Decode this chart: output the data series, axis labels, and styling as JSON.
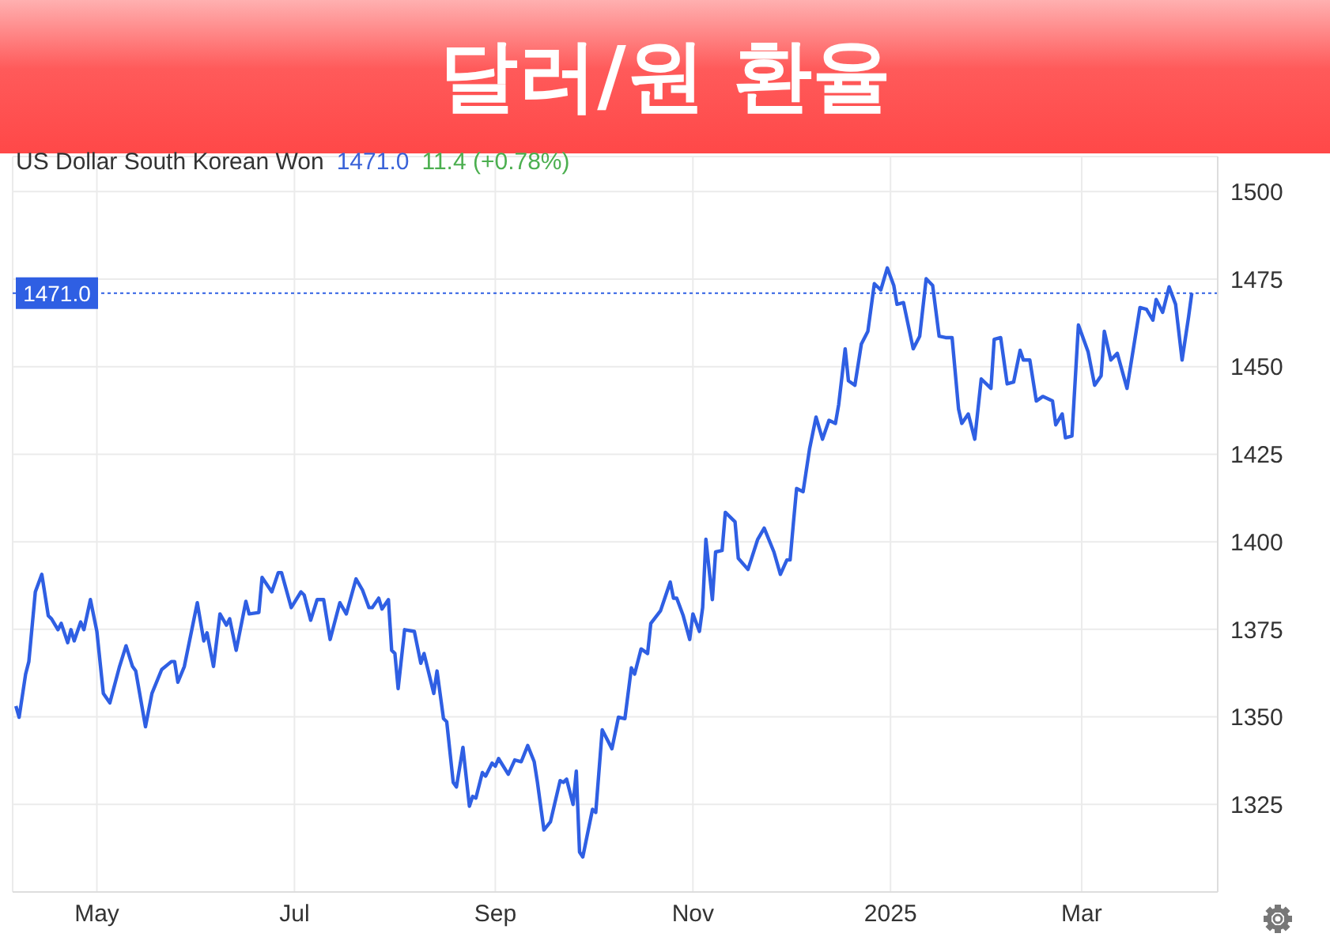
{
  "chart_data": {
    "type": "line",
    "title": "달러/원 환율",
    "subtitle": "US Dollar South Korean Won",
    "annotations": [
      "1471.0",
      "11.4 (+0.78%)"
    ],
    "x": [
      "2024-04-06",
      "2024-04-07",
      "2024-04-09",
      "2024-04-10",
      "2024-04-12",
      "2024-04-14",
      "2024-04-16",
      "2024-04-17",
      "2024-04-19",
      "2024-04-20",
      "2024-04-22",
      "2024-04-23",
      "2024-04-24",
      "2024-04-26",
      "2024-04-27",
      "2024-04-29",
      "2024-05-01",
      "2024-05-03",
      "2024-05-05",
      "2024-05-08",
      "2024-05-10",
      "2024-05-12",
      "2024-05-13",
      "2024-05-16",
      "2024-05-18",
      "2024-05-21",
      "2024-05-24",
      "2024-05-25",
      "2024-05-26",
      "2024-05-28",
      "2024-06-01",
      "2024-06-03",
      "2024-06-04",
      "2024-06-06",
      "2024-06-08",
      "2024-06-10",
      "2024-06-11",
      "2024-06-13",
      "2024-06-16",
      "2024-06-17",
      "2024-06-20",
      "2024-06-21",
      "2024-06-24",
      "2024-06-26",
      "2024-06-27",
      "2024-06-30",
      "2024-07-03",
      "2024-07-04",
      "2024-07-06",
      "2024-07-08",
      "2024-07-10",
      "2024-07-12",
      "2024-07-15",
      "2024-07-17",
      "2024-07-20",
      "2024-07-22",
      "2024-07-24",
      "2024-07-25",
      "2024-07-27",
      "2024-07-28",
      "2024-07-30",
      "2024-07-31",
      "2024-08-01",
      "2024-08-02",
      "2024-08-04",
      "2024-08-07",
      "2024-08-09",
      "2024-08-10",
      "2024-08-13",
      "2024-08-14",
      "2024-08-16",
      "2024-08-17",
      "2024-08-19",
      "2024-08-20",
      "2024-08-22",
      "2024-08-24",
      "2024-08-25",
      "2024-08-26",
      "2024-08-28",
      "2024-08-29",
      "2024-08-31",
      "2024-09-01",
      "2024-09-02",
      "2024-09-05",
      "2024-09-07",
      "2024-09-09",
      "2024-09-11",
      "2024-09-13",
      "2024-09-14",
      "2024-09-16",
      "2024-09-18",
      "2024-09-21",
      "2024-09-22",
      "2024-09-23",
      "2024-09-25",
      "2024-09-26",
      "2024-09-27",
      "2024-09-28",
      "2024-10-01",
      "2024-10-02",
      "2024-10-04",
      "2024-10-07",
      "2024-10-09",
      "2024-10-11",
      "2024-10-13",
      "2024-10-14",
      "2024-10-16",
      "2024-10-18",
      "2024-10-19",
      "2024-10-22",
      "2024-10-25",
      "2024-10-26",
      "2024-10-27",
      "2024-10-29",
      "2024-10-31",
      "2024-11-01",
      "2024-11-03",
      "2024-11-04",
      "2024-11-05",
      "2024-11-07",
      "2024-11-08",
      "2024-11-10",
      "2024-11-11",
      "2024-11-14",
      "2024-11-15",
      "2024-11-18",
      "2024-11-21",
      "2024-11-23",
      "2024-11-26",
      "2024-11-28",
      "2024-11-30",
      "2024-12-01",
      "2024-12-02",
      "2024-12-03",
      "2024-12-05",
      "2024-12-07",
      "2024-12-09",
      "2024-12-11",
      "2024-12-13",
      "2024-12-15",
      "2024-12-16",
      "2024-12-18",
      "2024-12-19",
      "2024-12-21",
      "2024-12-23",
      "2024-12-25",
      "2024-12-27",
      "2024-12-29",
      "2024-12-31",
      "2025-01-02",
      "2025-01-03",
      "2025-01-05",
      "2025-01-08",
      "2025-01-10",
      "2025-01-12",
      "2025-01-14",
      "2025-01-16",
      "2025-01-18",
      "2025-01-20",
      "2025-01-22",
      "2025-01-23",
      "2025-01-25",
      "2025-01-27",
      "2025-01-29",
      "2025-02-01",
      "2025-02-02",
      "2025-02-04",
      "2025-02-06",
      "2025-02-08",
      "2025-02-10",
      "2025-02-11",
      "2025-02-13",
      "2025-02-15",
      "2025-02-17",
      "2025-02-20",
      "2025-02-21",
      "2025-02-23",
      "2025-02-24",
      "2025-02-26",
      "2025-02-28",
      "2025-03-03",
      "2025-03-05",
      "2025-03-07",
      "2025-03-08",
      "2025-03-10",
      "2025-03-12",
      "2025-03-15",
      "2025-03-19",
      "2025-03-21",
      "2025-03-23",
      "2025-03-24",
      "2025-03-26",
      "2025-03-28",
      "2025-03-30",
      "2025-04-01",
      "2025-04-03",
      "2025-04-04"
    ],
    "series": [
      {
        "color": "#2f5fe3",
        "values": [
          1353.1,
          1349.9,
          1362.2,
          1365.8,
          1385.7,
          1390.7,
          1378.9,
          1378.0,
          1374.9,
          1376.7,
          1371.2,
          1374.9,
          1371.7,
          1377.1,
          1374.9,
          1383.5,
          1374.4,
          1356.7,
          1354.0,
          1364.4,
          1370.3,
          1364.4,
          1363.1,
          1347.2,
          1356.7,
          1363.5,
          1365.8,
          1365.8,
          1359.9,
          1364.4,
          1382.6,
          1371.7,
          1374.0,
          1364.4,
          1379.4,
          1376.2,
          1378.0,
          1369.0,
          1383.0,
          1379.4,
          1379.8,
          1389.8,
          1385.7,
          1391.2,
          1391.2,
          1381.2,
          1385.7,
          1384.8,
          1377.6,
          1383.5,
          1383.5,
          1372.1,
          1382.6,
          1379.4,
          1389.4,
          1386.2,
          1381.2,
          1381.2,
          1383.9,
          1380.8,
          1383.5,
          1369.0,
          1368.1,
          1358.1,
          1374.9,
          1374.4,
          1365.3,
          1368.1,
          1356.7,
          1363.1,
          1349.5,
          1348.6,
          1331.3,
          1330.0,
          1341.3,
          1324.5,
          1327.3,
          1326.8,
          1334.1,
          1333.1,
          1336.8,
          1335.9,
          1338.1,
          1333.6,
          1337.7,
          1337.2,
          1341.8,
          1337.2,
          1331.3,
          1317.7,
          1320.0,
          1331.8,
          1331.3,
          1332.2,
          1325.0,
          1334.5,
          1311.4,
          1310.0,
          1323.6,
          1322.7,
          1346.3,
          1340.9,
          1349.9,
          1349.5,
          1364.0,
          1362.2,
          1369.4,
          1368.1,
          1376.7,
          1380.3,
          1388.5,
          1383.9,
          1383.9,
          1378.9,
          1372.1,
          1379.4,
          1374.4,
          1381.2,
          1400.7,
          1383.5,
          1397.1,
          1397.5,
          1408.4,
          1405.7,
          1395.3,
          1392.1,
          1400.7,
          1403.9,
          1397.1,
          1390.7,
          1394.8,
          1394.8,
          1405.2,
          1415.2,
          1414.3,
          1426.5,
          1435.6,
          1429.3,
          1434.7,
          1433.8,
          1439.2,
          1455.1,
          1446.0,
          1444.7,
          1456.5,
          1460.1,
          1473.7,
          1471.9,
          1478.2,
          1473.2,
          1467.8,
          1468.3,
          1455.1,
          1458.7,
          1475.1,
          1473.2,
          1458.7,
          1458.3,
          1458.3,
          1437.9,
          1433.8,
          1436.5,
          1429.3,
          1446.5,
          1443.8,
          1457.8,
          1458.3,
          1445.1,
          1445.6,
          1454.7,
          1451.9,
          1451.9,
          1440.2,
          1441.5,
          1440.2,
          1433.4,
          1436.5,
          1429.7,
          1430.2,
          1461.9,
          1454.2,
          1444.7,
          1447.4,
          1460.1,
          1451.9,
          1453.8,
          1443.8,
          1466.9,
          1466.4,
          1463.3,
          1469.2,
          1465.5,
          1472.8,
          1467.8,
          1451.9,
          1464.2,
          1471.0
        ]
      }
    ],
    "xlim": [
      "2024-04-05",
      "2025-04-12"
    ],
    "xticks": [
      {
        "value": "2024-05-01",
        "label": "May"
      },
      {
        "value": "2024-07-01",
        "label": "Jul"
      },
      {
        "value": "2024-09-01",
        "label": "Sep"
      },
      {
        "value": "2024-11-01",
        "label": "Nov"
      },
      {
        "value": "2025-01-01",
        "label": "2025"
      },
      {
        "value": "2025-03-01",
        "label": "Mar"
      }
    ],
    "ylim": [
      1300,
      1510
    ],
    "yticks": [
      1325,
      1350,
      1375,
      1400,
      1425,
      1450,
      1475,
      1500
    ],
    "grid": true,
    "ref_lines": [
      {
        "axis": "y",
        "value": 1471.0,
        "label": "1471.0",
        "color": "#2f5fe3",
        "line_style": "dotted"
      }
    ]
  }
}
